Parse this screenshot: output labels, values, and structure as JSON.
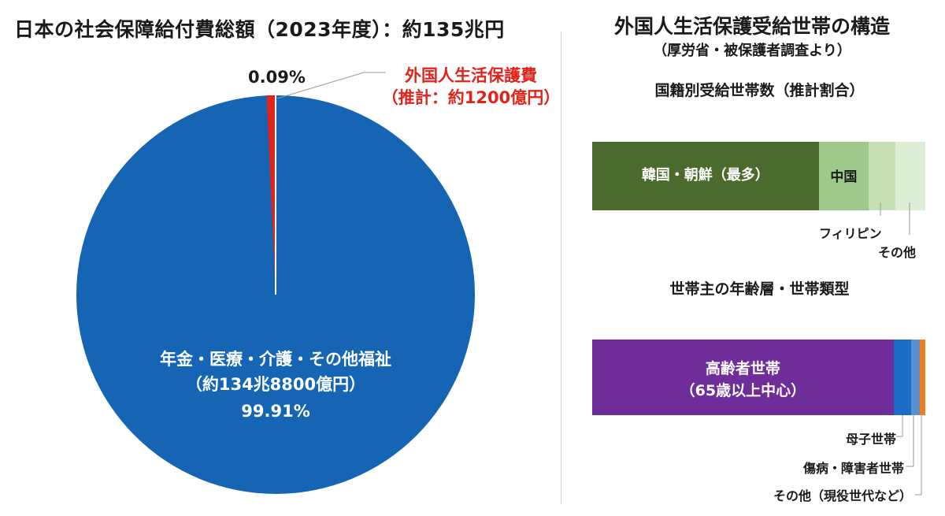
{
  "left_title": "日本の社会保障給付費総額（2023年度）：約135兆円",
  "right_title": "外国人生活保護受給世帯の構造",
  "right_subtitle": "（厚労省・被保護者調査より）",
  "colors": {
    "pie_main": "#1565b4",
    "pie_foreign": "#e2231a",
    "korea": "#4b6a2e",
    "china": "#9fc98b",
    "philippines": "#c6e0b6",
    "other_nat": "#deeed4",
    "elderly": "#6e2d99",
    "single_mother": "#1a6ec8",
    "sick_disabled": "#5a8fd0",
    "other_house": "#ef7d22"
  },
  "chart_data": [
    {
      "type": "pie",
      "title": "日本の社会保障給付費総額（2023年度）：約135兆円",
      "slices": [
        {
          "name": "年金・医療・介護・その他福祉",
          "amount_label": "（約134兆8800億円）",
          "pct": 99.91,
          "pct_label": "99.91%"
        },
        {
          "name": "外国人生活保護費",
          "amount_label": "（推計：約1200億円）",
          "pct": 0.09,
          "pct_label": "0.09%"
        }
      ]
    },
    {
      "type": "bar",
      "orientation": "horizontal-stacked",
      "title": "国籍別受給世帯数（推計割合）",
      "categories": [
        "韓国・朝鮮（最多）",
        "中国",
        "フィリピン",
        "その他"
      ],
      "values": [
        68,
        15,
        8,
        9
      ],
      "unit": "推計割合（%）"
    },
    {
      "type": "bar",
      "orientation": "horizontal-stacked",
      "title": "世帯主の年齢層・世帯類型",
      "categories": [
        "高齢者世帯",
        "母子世帯",
        "傷病・障害者世帯",
        "その他（現役世代など）"
      ],
      "sub_label": "（65歳以上中心）",
      "values": [
        90.5,
        5.2,
        2.6,
        1.7
      ],
      "unit": "推計割合（%）"
    }
  ]
}
